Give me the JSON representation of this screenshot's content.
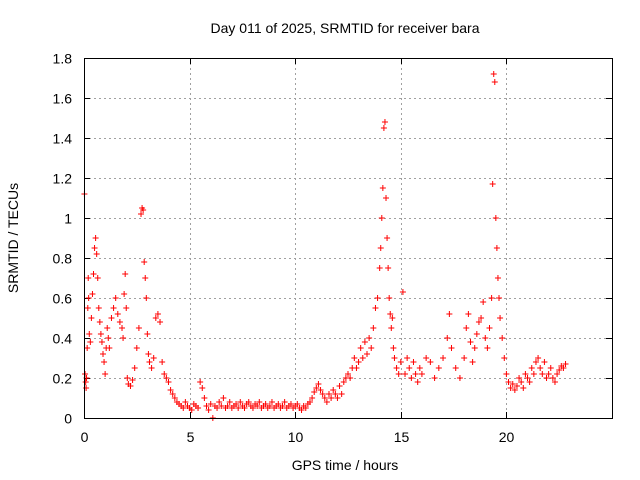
{
  "chart_data": {
    "type": "scatter",
    "title": "Day 011 of 2025, SRMTID for receiver bara",
    "xlabel": "GPS time / hours",
    "ylabel": "SRMTID / TECUs",
    "xlim": [
      0,
      25
    ],
    "ylim": [
      0,
      1.8
    ],
    "xticks": [
      0,
      5,
      10,
      15,
      20
    ],
    "xtick_labels": [
      "0",
      "5",
      "10",
      "15",
      "20"
    ],
    "yticks": [
      0,
      0.2,
      0.4,
      0.6,
      0.8,
      1,
      1.2,
      1.4,
      1.6,
      1.8
    ],
    "ytick_labels": [
      "0",
      "0.2",
      "0.4",
      "0.6",
      "0.8",
      "1",
      "1.2",
      "1.4",
      "1.6",
      "1.8"
    ],
    "grid": true,
    "marker": "+",
    "color": "#ff0000",
    "series": [
      {
        "name": "SRMTID",
        "points": [
          [
            0.02,
            1.12
          ],
          [
            0.05,
            0.22
          ],
          [
            0.08,
            0.18
          ],
          [
            0.1,
            0.15
          ],
          [
            0.12,
            0.2
          ],
          [
            0.15,
            0.35
          ],
          [
            0.18,
            0.55
          ],
          [
            0.2,
            0.7
          ],
          [
            0.22,
            0.6
          ],
          [
            0.25,
            0.42
          ],
          [
            0.3,
            0.38
          ],
          [
            0.35,
            0.5
          ],
          [
            0.4,
            0.62
          ],
          [
            0.45,
            0.72
          ],
          [
            0.5,
            0.85
          ],
          [
            0.55,
            0.9
          ],
          [
            0.6,
            0.82
          ],
          [
            0.65,
            0.7
          ],
          [
            0.7,
            0.55
          ],
          [
            0.75,
            0.48
          ],
          [
            0.8,
            0.42
          ],
          [
            0.85,
            0.38
          ],
          [
            0.9,
            0.32
          ],
          [
            0.95,
            0.28
          ],
          [
            1.0,
            0.22
          ],
          [
            1.05,
            0.35
          ],
          [
            1.1,
            0.45
          ],
          [
            1.15,
            0.4
          ],
          [
            1.2,
            0.35
          ],
          [
            1.3,
            0.5
          ],
          [
            1.4,
            0.55
          ],
          [
            1.5,
            0.6
          ],
          [
            1.6,
            0.52
          ],
          [
            1.7,
            0.48
          ],
          [
            1.8,
            0.45
          ],
          [
            1.85,
            0.4
          ],
          [
            1.9,
            0.62
          ],
          [
            1.95,
            0.72
          ],
          [
            2.0,
            0.55
          ],
          [
            2.05,
            0.2
          ],
          [
            2.1,
            0.17
          ],
          [
            2.2,
            0.16
          ],
          [
            2.3,
            0.19
          ],
          [
            2.4,
            0.25
          ],
          [
            2.5,
            0.35
          ],
          [
            2.6,
            0.45
          ],
          [
            2.7,
            1.02
          ],
          [
            2.75,
            1.05
          ],
          [
            2.8,
            1.04
          ],
          [
            2.85,
            0.78
          ],
          [
            2.9,
            0.7
          ],
          [
            2.95,
            0.6
          ],
          [
            3.0,
            0.42
          ],
          [
            3.05,
            0.32
          ],
          [
            3.1,
            0.28
          ],
          [
            3.2,
            0.25
          ],
          [
            3.3,
            0.3
          ],
          [
            3.4,
            0.5
          ],
          [
            3.5,
            0.52
          ],
          [
            3.6,
            0.48
          ],
          [
            3.7,
            0.28
          ],
          [
            3.8,
            0.22
          ],
          [
            3.9,
            0.2
          ],
          [
            4.0,
            0.18
          ],
          [
            4.1,
            0.14
          ],
          [
            4.2,
            0.12
          ],
          [
            4.3,
            0.1
          ],
          [
            4.4,
            0.08
          ],
          [
            4.5,
            0.07
          ],
          [
            4.6,
            0.06
          ],
          [
            4.7,
            0.05
          ],
          [
            4.8,
            0.08
          ],
          [
            4.9,
            0.06
          ],
          [
            5.0,
            0.05
          ],
          [
            5.1,
            0.04
          ],
          [
            5.2,
            0.07
          ],
          [
            5.3,
            0.06
          ],
          [
            5.4,
            0.05
          ],
          [
            5.5,
            0.18
          ],
          [
            5.6,
            0.15
          ],
          [
            5.7,
            0.1
          ],
          [
            5.8,
            0.06
          ],
          [
            5.9,
            0.04
          ],
          [
            6.0,
            0.07
          ],
          [
            6.1,
            0.0
          ],
          [
            6.2,
            0.06
          ],
          [
            6.3,
            0.05
          ],
          [
            6.4,
            0.08
          ],
          [
            6.5,
            0.06
          ],
          [
            6.6,
            0.1
          ],
          [
            6.7,
            0.05
          ],
          [
            6.8,
            0.06
          ],
          [
            6.9,
            0.08
          ],
          [
            7.0,
            0.05
          ],
          [
            7.1,
            0.06
          ],
          [
            7.2,
            0.07
          ],
          [
            7.3,
            0.05
          ],
          [
            7.4,
            0.08
          ],
          [
            7.5,
            0.06
          ],
          [
            7.6,
            0.05
          ],
          [
            7.7,
            0.07
          ],
          [
            7.8,
            0.08
          ],
          [
            7.9,
            0.06
          ],
          [
            8.0,
            0.05
          ],
          [
            8.1,
            0.07
          ],
          [
            8.2,
            0.06
          ],
          [
            8.3,
            0.08
          ],
          [
            8.4,
            0.05
          ],
          [
            8.5,
            0.06
          ],
          [
            8.6,
            0.07
          ],
          [
            8.7,
            0.05
          ],
          [
            8.8,
            0.06
          ],
          [
            8.9,
            0.08
          ],
          [
            9.0,
            0.05
          ],
          [
            9.1,
            0.06
          ],
          [
            9.2,
            0.07
          ],
          [
            9.3,
            0.05
          ],
          [
            9.4,
            0.06
          ],
          [
            9.5,
            0.08
          ],
          [
            9.6,
            0.05
          ],
          [
            9.7,
            0.06
          ],
          [
            9.8,
            0.07
          ],
          [
            9.9,
            0.05
          ],
          [
            10.0,
            0.06
          ],
          [
            10.1,
            0.07
          ],
          [
            10.2,
            0.05
          ],
          [
            10.3,
            0.04
          ],
          [
            10.4,
            0.06
          ],
          [
            10.5,
            0.05
          ],
          [
            10.6,
            0.07
          ],
          [
            10.7,
            0.08
          ],
          [
            10.8,
            0.1
          ],
          [
            10.9,
            0.13
          ],
          [
            11.0,
            0.15
          ],
          [
            11.1,
            0.17
          ],
          [
            11.2,
            0.14
          ],
          [
            11.3,
            0.12
          ],
          [
            11.4,
            0.1
          ],
          [
            11.5,
            0.08
          ],
          [
            11.6,
            0.12
          ],
          [
            11.7,
            0.1
          ],
          [
            11.8,
            0.14
          ],
          [
            11.9,
            0.12
          ],
          [
            12.0,
            0.1
          ],
          [
            12.1,
            0.16
          ],
          [
            12.2,
            0.12
          ],
          [
            12.3,
            0.18
          ],
          [
            12.4,
            0.2
          ],
          [
            12.5,
            0.22
          ],
          [
            12.6,
            0.2
          ],
          [
            12.7,
            0.25
          ],
          [
            12.8,
            0.3
          ],
          [
            12.9,
            0.25
          ],
          [
            13.0,
            0.28
          ],
          [
            13.1,
            0.35
          ],
          [
            13.2,
            0.3
          ],
          [
            13.3,
            0.38
          ],
          [
            13.4,
            0.32
          ],
          [
            13.5,
            0.4
          ],
          [
            13.6,
            0.35
          ],
          [
            13.7,
            0.45
          ],
          [
            13.8,
            0.55
          ],
          [
            13.9,
            0.6
          ],
          [
            14.0,
            0.75
          ],
          [
            14.05,
            0.85
          ],
          [
            14.1,
            1.0
          ],
          [
            14.15,
            1.15
          ],
          [
            14.2,
            1.45
          ],
          [
            14.25,
            1.48
          ],
          [
            14.3,
            1.1
          ],
          [
            14.35,
            0.9
          ],
          [
            14.4,
            0.75
          ],
          [
            14.45,
            0.6
          ],
          [
            14.5,
            0.52
          ],
          [
            14.55,
            0.45
          ],
          [
            14.6,
            0.5
          ],
          [
            14.65,
            0.35
          ],
          [
            14.7,
            0.3
          ],
          [
            14.8,
            0.25
          ],
          [
            14.9,
            0.22
          ],
          [
            15.0,
            0.28
          ],
          [
            15.1,
            0.63
          ],
          [
            15.2,
            0.22
          ],
          [
            15.3,
            0.3
          ],
          [
            15.4,
            0.25
          ],
          [
            15.5,
            0.2
          ],
          [
            15.6,
            0.28
          ],
          [
            15.7,
            0.22
          ],
          [
            15.8,
            0.18
          ],
          [
            15.9,
            0.25
          ],
          [
            16.0,
            0.22
          ],
          [
            16.2,
            0.3
          ],
          [
            16.4,
            0.28
          ],
          [
            16.6,
            0.2
          ],
          [
            16.8,
            0.25
          ],
          [
            17.0,
            0.3
          ],
          [
            17.2,
            0.4
          ],
          [
            17.3,
            0.52
          ],
          [
            17.4,
            0.35
          ],
          [
            17.6,
            0.25
          ],
          [
            17.8,
            0.2
          ],
          [
            18.0,
            0.3
          ],
          [
            18.1,
            0.45
          ],
          [
            18.2,
            0.52
          ],
          [
            18.3,
            0.38
          ],
          [
            18.4,
            0.28
          ],
          [
            18.5,
            0.35
          ],
          [
            18.6,
            0.42
          ],
          [
            18.7,
            0.48
          ],
          [
            18.8,
            0.5
          ],
          [
            18.9,
            0.58
          ],
          [
            19.0,
            0.4
          ],
          [
            19.1,
            0.35
          ],
          [
            19.2,
            0.45
          ],
          [
            19.3,
            0.6
          ],
          [
            19.35,
            1.17
          ],
          [
            19.4,
            1.72
          ],
          [
            19.45,
            1.68
          ],
          [
            19.5,
            1.0
          ],
          [
            19.55,
            0.85
          ],
          [
            19.6,
            0.7
          ],
          [
            19.65,
            0.6
          ],
          [
            19.7,
            0.5
          ],
          [
            19.8,
            0.4
          ],
          [
            19.9,
            0.3
          ],
          [
            20.0,
            0.22
          ],
          [
            20.1,
            0.18
          ],
          [
            20.2,
            0.15
          ],
          [
            20.3,
            0.17
          ],
          [
            20.4,
            0.14
          ],
          [
            20.5,
            0.16
          ],
          [
            20.6,
            0.2
          ],
          [
            20.7,
            0.18
          ],
          [
            20.8,
            0.15
          ],
          [
            20.9,
            0.22
          ],
          [
            21.0,
            0.2
          ],
          [
            21.1,
            0.18
          ],
          [
            21.2,
            0.25
          ],
          [
            21.3,
            0.22
          ],
          [
            21.4,
            0.28
          ],
          [
            21.5,
            0.3
          ],
          [
            21.6,
            0.25
          ],
          [
            21.7,
            0.22
          ],
          [
            21.8,
            0.28
          ],
          [
            21.9,
            0.2
          ],
          [
            22.0,
            0.22
          ],
          [
            22.1,
            0.25
          ],
          [
            22.2,
            0.2
          ],
          [
            22.3,
            0.18
          ],
          [
            22.4,
            0.22
          ],
          [
            22.5,
            0.24
          ],
          [
            22.6,
            0.26
          ],
          [
            22.7,
            0.25
          ],
          [
            22.8,
            0.27
          ]
        ]
      }
    ]
  }
}
